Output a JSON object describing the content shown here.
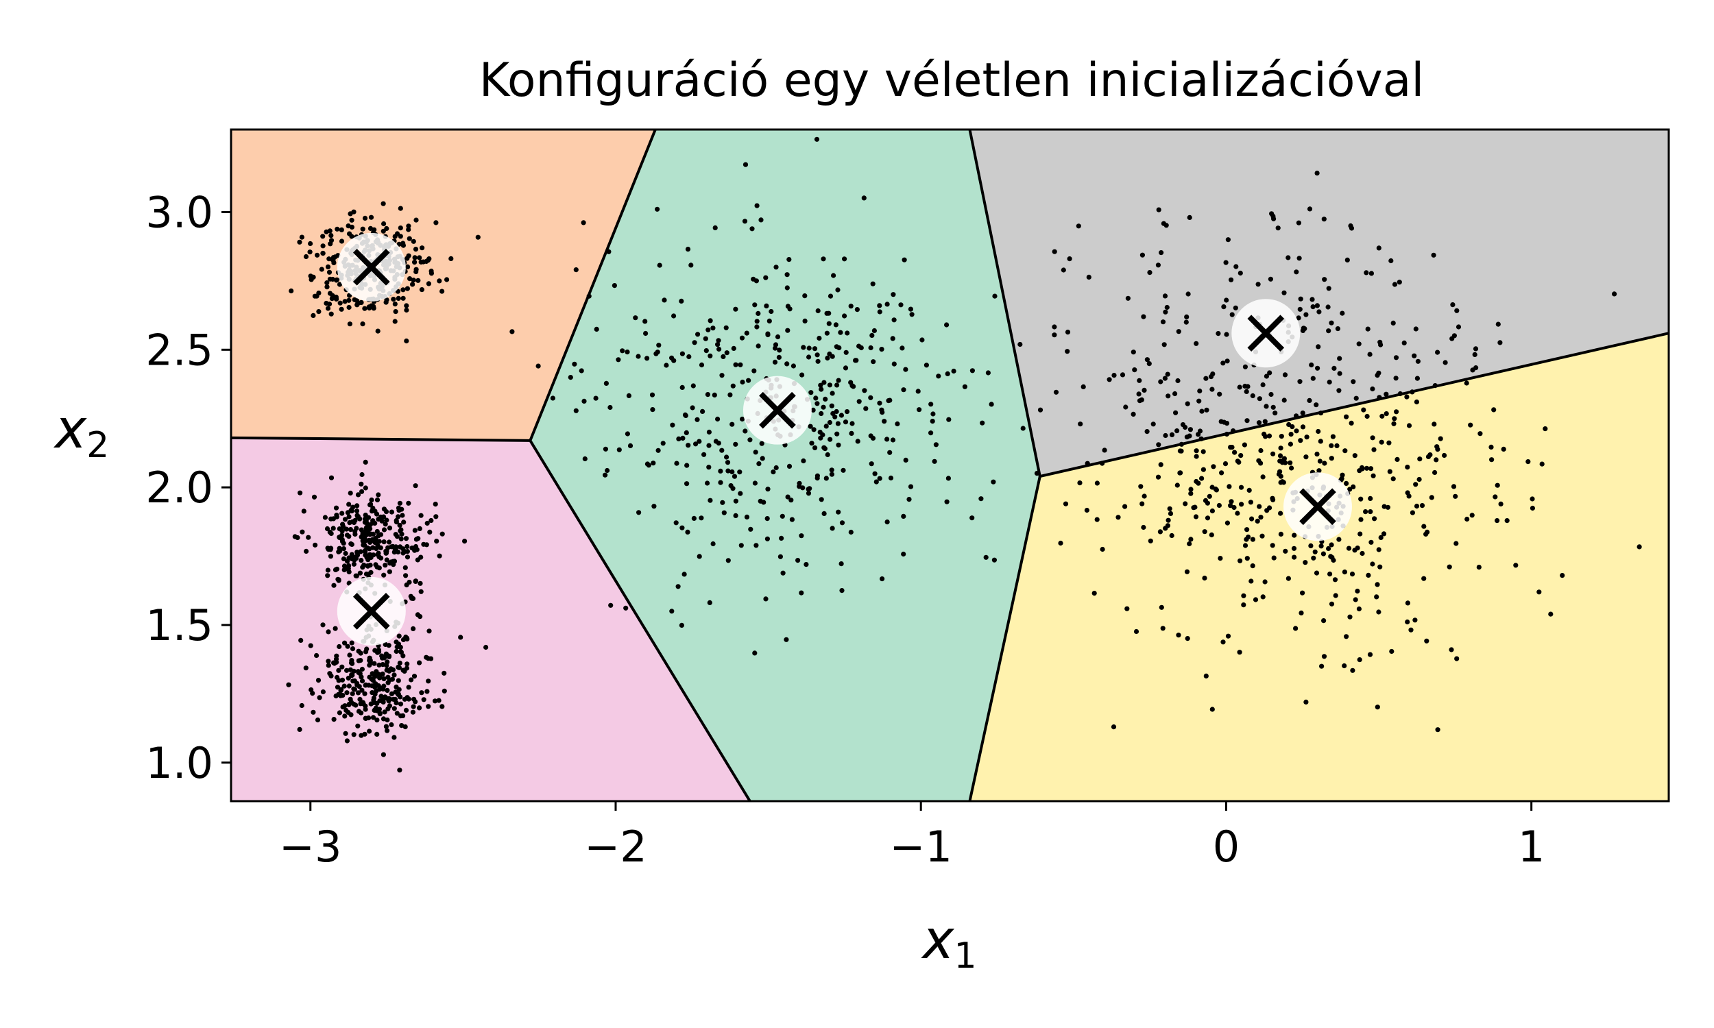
{
  "chart_data": {
    "type": "scatter",
    "title": "Konfiguráció egy véletlen inicializációval",
    "xlabel": "x",
    "xlabel_sub": "1",
    "ylabel": "x",
    "ylabel_sub": "2",
    "xlim": [
      -3.26,
      1.45
    ],
    "ylim": [
      0.86,
      3.3
    ],
    "xticks": [
      -3,
      -2,
      -1,
      0,
      1
    ],
    "xtick_labels": [
      "−3",
      "−2",
      "−1",
      "0",
      "1"
    ],
    "yticks": [
      1.0,
      1.5,
      2.0,
      2.5,
      3.0
    ],
    "ytick_labels": [
      "1.0",
      "1.5",
      "2.0",
      "2.5",
      "3.0"
    ],
    "grid": false,
    "legend": "none",
    "regions": [
      {
        "color": "#fdcdac",
        "polygon": [
          [
            -3.26,
            2.18
          ],
          [
            -2.28,
            2.17
          ],
          [
            -1.87,
            3.3
          ],
          [
            -3.26,
            3.3
          ]
        ]
      },
      {
        "color": "#f4cae4",
        "polygon": [
          [
            -3.26,
            0.86
          ],
          [
            -1.56,
            0.86
          ],
          [
            -2.28,
            2.17
          ],
          [
            -3.26,
            2.18
          ]
        ]
      },
      {
        "color": "#b3e2cd",
        "polygon": [
          [
            -2.28,
            2.17
          ],
          [
            -1.87,
            3.3
          ],
          [
            -0.84,
            3.3
          ],
          [
            -0.61,
            2.04
          ],
          [
            -0.84,
            0.86
          ],
          [
            -1.56,
            0.86
          ]
        ]
      },
      {
        "color": "#cccccc",
        "polygon": [
          [
            -0.84,
            3.3
          ],
          [
            1.45,
            3.3
          ],
          [
            1.45,
            2.56
          ],
          [
            -0.61,
            2.04
          ]
        ]
      },
      {
        "color": "#fff2ae",
        "polygon": [
          [
            -0.61,
            2.04
          ],
          [
            1.45,
            2.56
          ],
          [
            1.45,
            0.86
          ],
          [
            -0.84,
            0.86
          ]
        ]
      }
    ],
    "boundaries": [
      [
        [
          -3.26,
          2.18
        ],
        [
          -2.28,
          2.17
        ]
      ],
      [
        [
          -2.28,
          2.17
        ],
        [
          -1.87,
          3.3
        ]
      ],
      [
        [
          -2.28,
          2.17
        ],
        [
          -1.56,
          0.86
        ]
      ],
      [
        [
          -0.84,
          3.3
        ],
        [
          -0.61,
          2.04
        ]
      ],
      [
        [
          -0.61,
          2.04
        ],
        [
          -0.84,
          0.86
        ]
      ],
      [
        [
          -0.61,
          2.04
        ],
        [
          1.45,
          2.56
        ]
      ]
    ],
    "clusters": [
      {
        "cx": -2.8,
        "cy": 2.8,
        "sx": 0.1,
        "sy": 0.1,
        "n": 300
      },
      {
        "cx": -2.8,
        "cy": 1.8,
        "sx": 0.1,
        "sy": 0.1,
        "n": 300
      },
      {
        "cx": -2.8,
        "cy": 1.3,
        "sx": 0.1,
        "sy": 0.1,
        "n": 300
      },
      {
        "cx": -1.47,
        "cy": 2.29,
        "sx": 0.3,
        "sy": 0.3,
        "n": 420
      },
      {
        "cx": 0.13,
        "cy": 2.32,
        "sx": 0.35,
        "sy": 0.35,
        "n": 300
      },
      {
        "cx": 0.25,
        "cy": 1.95,
        "sx": 0.35,
        "sy": 0.3,
        "n": 280
      }
    ],
    "centroids": [
      {
        "x": -2.8,
        "y": 2.8
      },
      {
        "x": -2.8,
        "y": 1.55
      },
      {
        "x": -1.47,
        "y": 2.28
      },
      {
        "x": 0.13,
        "y": 2.56
      },
      {
        "x": 0.3,
        "y": 1.93
      }
    ]
  }
}
